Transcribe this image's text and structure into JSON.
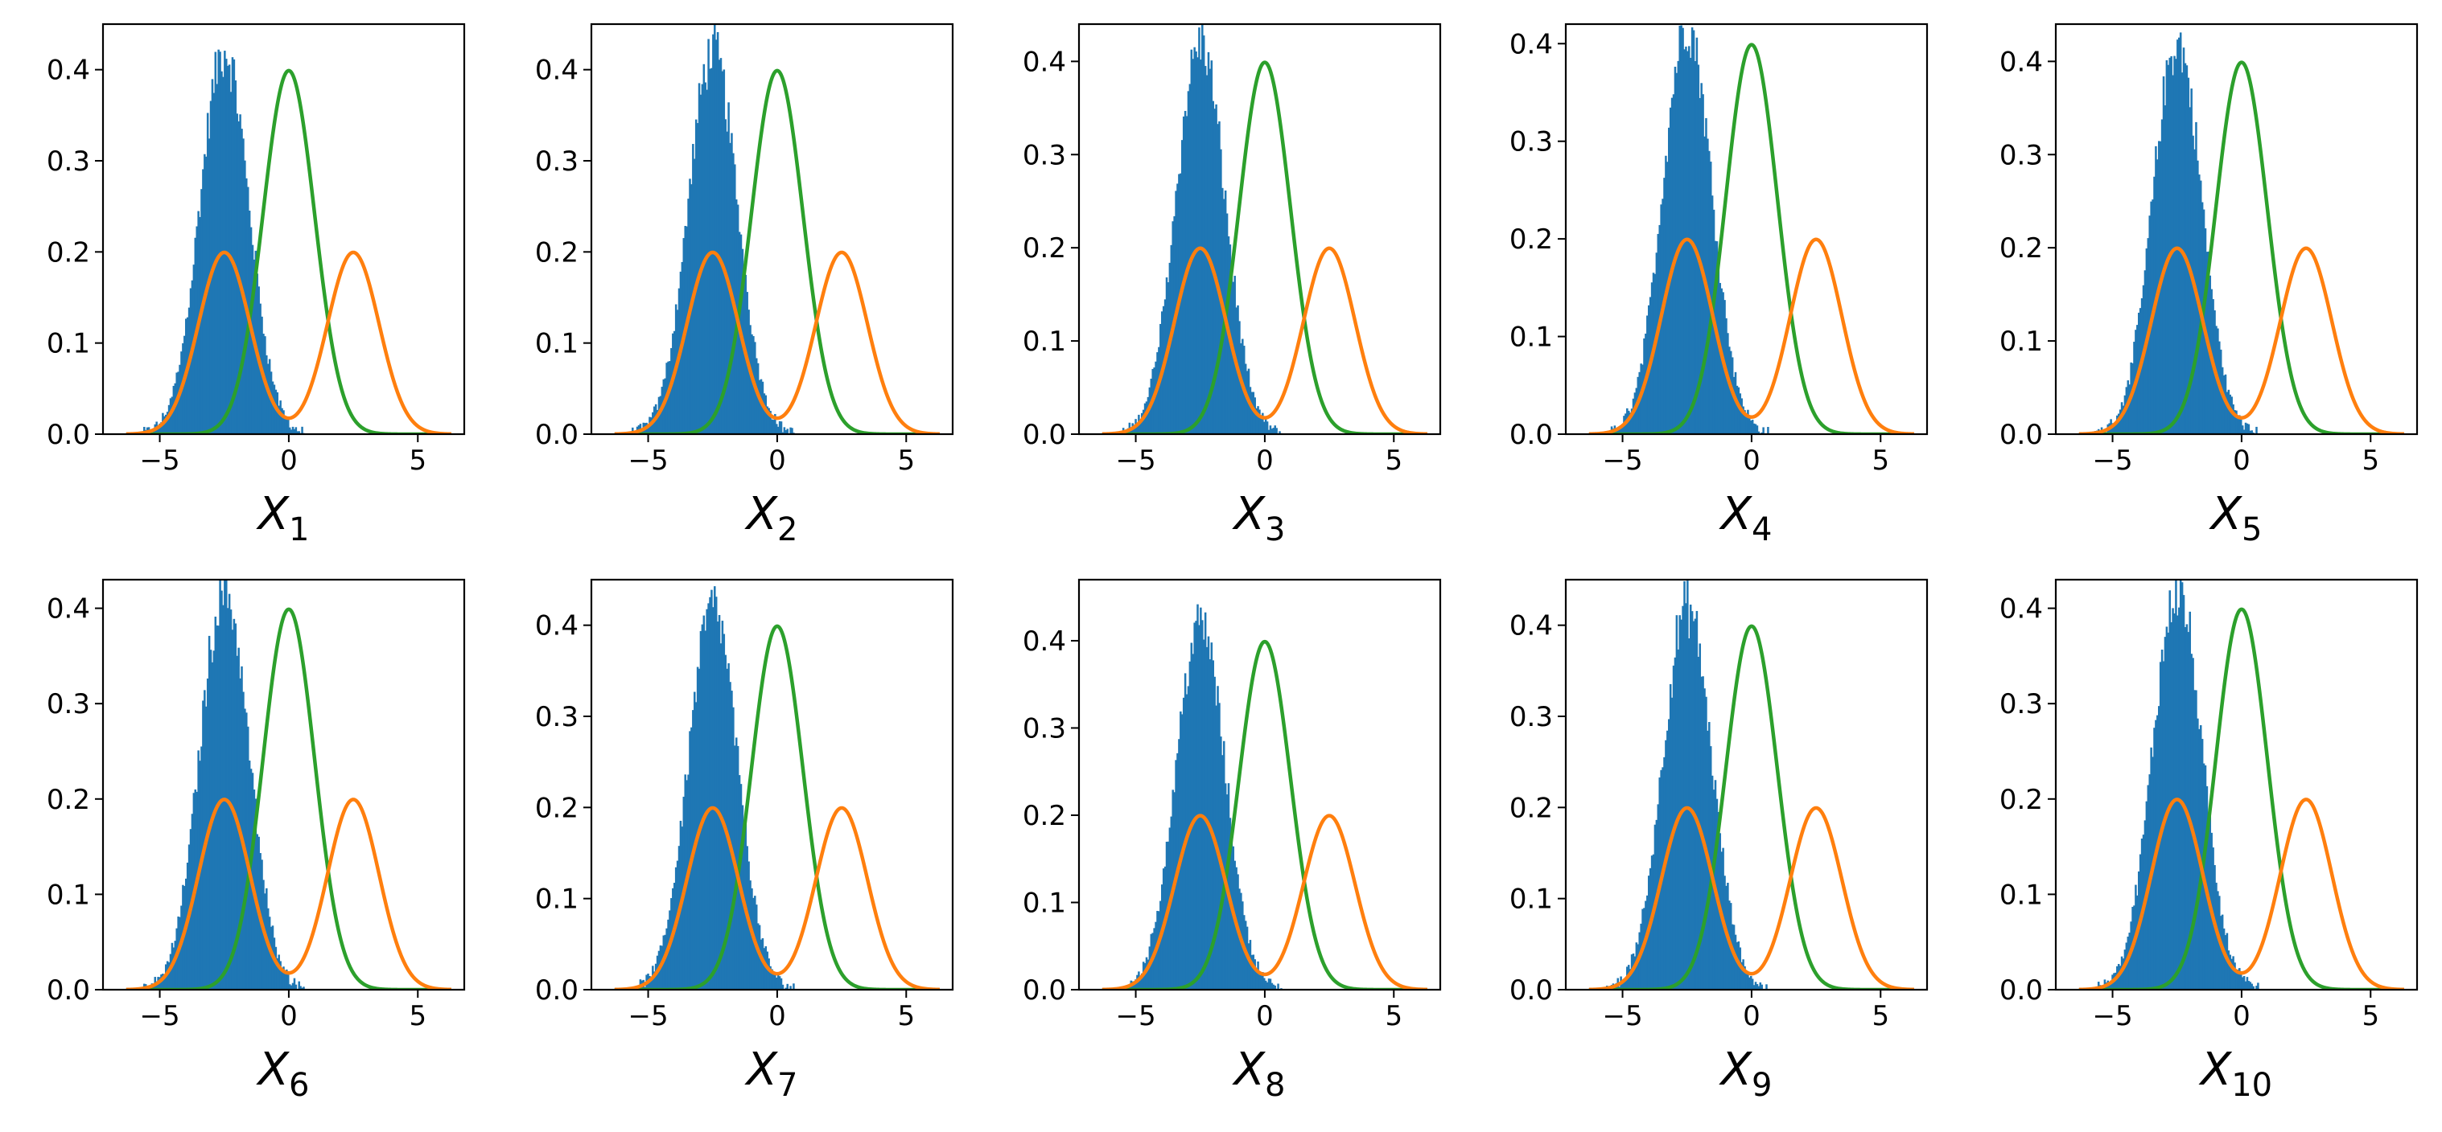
{
  "figure": {
    "description_free": true,
    "colors": {
      "histogram": "#1f77b4",
      "mixture_curve": "#ff7f0e",
      "normal_curve": "#2ca02c",
      "axes": "#000000"
    }
  },
  "chart_data": [
    {
      "type": "histogram+line",
      "xlabel_base": "X",
      "xlabel_sub": "1",
      "xlim": [
        -7.2,
        6.8
      ],
      "ylim": [
        0,
        0.45
      ],
      "xticks": [
        -5,
        0,
        5
      ],
      "xtick_labels": [
        "−5",
        "0",
        "5"
      ],
      "yticks": [
        0,
        0.1,
        0.2,
        0.3,
        0.4
      ],
      "ytick_labels": [
        "0.0",
        "0.1",
        "0.2",
        "0.3",
        "0.4"
      ],
      "series": [
        {
          "name": "histogram",
          "kind": "hist",
          "mean": -2.5,
          "std": 0.95,
          "range": [
            -6,
            2
          ]
        },
        {
          "name": "normal",
          "kind": "line",
          "formula": "N(0,1)",
          "color": "#2ca02c"
        },
        {
          "name": "mixture",
          "kind": "line",
          "formula": "0.5·N(-2.5,1)+0.5·N(2.5,1)",
          "color": "#ff7f0e"
        }
      ]
    },
    {
      "type": "histogram+line",
      "xlabel_base": "X",
      "xlabel_sub": "2",
      "xlim": [
        -7.2,
        6.8
      ],
      "ylim": [
        0,
        0.45
      ],
      "xticks": [
        -5,
        0,
        5
      ],
      "xtick_labels": [
        "−5",
        "0",
        "5"
      ],
      "yticks": [
        0,
        0.1,
        0.2,
        0.3,
        0.4
      ],
      "ytick_labels": [
        "0.0",
        "0.1",
        "0.2",
        "0.3",
        "0.4"
      ],
      "series": [
        {
          "name": "histogram",
          "kind": "hist",
          "mean": -2.5,
          "std": 0.95,
          "range": [
            -6,
            2
          ]
        },
        {
          "name": "normal",
          "kind": "line",
          "formula": "N(0,1)",
          "color": "#2ca02c"
        },
        {
          "name": "mixture",
          "kind": "line",
          "formula": "0.5·N(-2.5,1)+0.5·N(2.5,1)",
          "color": "#ff7f0e"
        }
      ]
    },
    {
      "type": "histogram+line",
      "xlabel_base": "X",
      "xlabel_sub": "3",
      "xlim": [
        -7.2,
        6.8
      ],
      "ylim": [
        0,
        0.44
      ],
      "xticks": [
        -5,
        0,
        5
      ],
      "xtick_labels": [
        "−5",
        "0",
        "5"
      ],
      "yticks": [
        0,
        0.1,
        0.2,
        0.3,
        0.4
      ],
      "ytick_labels": [
        "0.0",
        "0.1",
        "0.2",
        "0.3",
        "0.4"
      ],
      "series": [
        {
          "name": "histogram",
          "kind": "hist",
          "mean": -2.5,
          "std": 0.95,
          "range": [
            -6,
            2
          ]
        },
        {
          "name": "normal",
          "kind": "line",
          "formula": "N(0,1)",
          "color": "#2ca02c"
        },
        {
          "name": "mixture",
          "kind": "line",
          "formula": "0.5·N(-2.5,1)+0.5·N(2.5,1)",
          "color": "#ff7f0e"
        }
      ]
    },
    {
      "type": "histogram+line",
      "xlabel_base": "X",
      "xlabel_sub": "4",
      "xlim": [
        -7.2,
        6.8
      ],
      "ylim": [
        0,
        0.42
      ],
      "xticks": [
        -5,
        0,
        5
      ],
      "xtick_labels": [
        "−5",
        "0",
        "5"
      ],
      "yticks": [
        0,
        0.1,
        0.2,
        0.3,
        0.4
      ],
      "ytick_labels": [
        "0.0",
        "0.1",
        "0.2",
        "0.3",
        "0.4"
      ],
      "series": [
        {
          "name": "histogram",
          "kind": "hist",
          "mean": -2.5,
          "std": 0.95,
          "range": [
            -6,
            2
          ]
        },
        {
          "name": "normal",
          "kind": "line",
          "formula": "N(0,1)",
          "color": "#2ca02c"
        },
        {
          "name": "mixture",
          "kind": "line",
          "formula": "0.5·N(-2.5,1)+0.5·N(2.5,1)",
          "color": "#ff7f0e"
        }
      ]
    },
    {
      "type": "histogram+line",
      "xlabel_base": "X",
      "xlabel_sub": "5",
      "xlim": [
        -7.2,
        6.8
      ],
      "ylim": [
        0,
        0.44
      ],
      "xticks": [
        -5,
        0,
        5
      ],
      "xtick_labels": [
        "−5",
        "0",
        "5"
      ],
      "yticks": [
        0,
        0.1,
        0.2,
        0.3,
        0.4
      ],
      "ytick_labels": [
        "0.0",
        "0.1",
        "0.2",
        "0.3",
        "0.4"
      ],
      "series": [
        {
          "name": "histogram",
          "kind": "hist",
          "mean": -2.5,
          "std": 0.95,
          "range": [
            -6,
            2
          ]
        },
        {
          "name": "normal",
          "kind": "line",
          "formula": "N(0,1)",
          "color": "#2ca02c"
        },
        {
          "name": "mixture",
          "kind": "line",
          "formula": "0.5·N(-2.5,1)+0.5·N(2.5,1)",
          "color": "#ff7f0e"
        }
      ]
    },
    {
      "type": "histogram+line",
      "xlabel_base": "X",
      "xlabel_sub": "6",
      "xlim": [
        -7.2,
        6.8
      ],
      "ylim": [
        0,
        0.43
      ],
      "xticks": [
        -5,
        0,
        5
      ],
      "xtick_labels": [
        "−5",
        "0",
        "5"
      ],
      "yticks": [
        0,
        0.1,
        0.2,
        0.3,
        0.4
      ],
      "ytick_labels": [
        "0.0",
        "0.1",
        "0.2",
        "0.3",
        "0.4"
      ],
      "series": [
        {
          "name": "histogram",
          "kind": "hist",
          "mean": -2.5,
          "std": 0.95,
          "range": [
            -6,
            2
          ]
        },
        {
          "name": "normal",
          "kind": "line",
          "formula": "N(0,1)",
          "color": "#2ca02c"
        },
        {
          "name": "mixture",
          "kind": "line",
          "formula": "0.5·N(-2.5,1)+0.5·N(2.5,1)",
          "color": "#ff7f0e"
        }
      ]
    },
    {
      "type": "histogram+line",
      "xlabel_base": "X",
      "xlabel_sub": "7",
      "xlim": [
        -7.2,
        6.8
      ],
      "ylim": [
        0,
        0.45
      ],
      "xticks": [
        -5,
        0,
        5
      ],
      "xtick_labels": [
        "−5",
        "0",
        "5"
      ],
      "yticks": [
        0,
        0.1,
        0.2,
        0.3,
        0.4
      ],
      "ytick_labels": [
        "0.0",
        "0.1",
        "0.2",
        "0.3",
        "0.4"
      ],
      "series": [
        {
          "name": "histogram",
          "kind": "hist",
          "mean": -2.5,
          "std": 0.95,
          "range": [
            -6,
            2
          ]
        },
        {
          "name": "normal",
          "kind": "line",
          "formula": "N(0,1)",
          "color": "#2ca02c"
        },
        {
          "name": "mixture",
          "kind": "line",
          "formula": "0.5·N(-2.5,1)+0.5·N(2.5,1)",
          "color": "#ff7f0e"
        }
      ]
    },
    {
      "type": "histogram+line",
      "xlabel_base": "X",
      "xlabel_sub": "8",
      "xlim": [
        -7.2,
        6.8
      ],
      "ylim": [
        0,
        0.47
      ],
      "xticks": [
        -5,
        0,
        5
      ],
      "xtick_labels": [
        "−5",
        "0",
        "5"
      ],
      "yticks": [
        0,
        0.1,
        0.2,
        0.3,
        0.4
      ],
      "ytick_labels": [
        "0.0",
        "0.1",
        "0.2",
        "0.3",
        "0.4"
      ],
      "series": [
        {
          "name": "histogram",
          "kind": "hist",
          "mean": -2.5,
          "std": 0.95,
          "range": [
            -6,
            2
          ]
        },
        {
          "name": "normal",
          "kind": "line",
          "formula": "N(0,1)",
          "color": "#2ca02c"
        },
        {
          "name": "mixture",
          "kind": "line",
          "formula": "0.5·N(-2.5,1)+0.5·N(2.5,1)",
          "color": "#ff7f0e"
        }
      ]
    },
    {
      "type": "histogram+line",
      "xlabel_base": "X",
      "xlabel_sub": "9",
      "xlim": [
        -7.2,
        6.8
      ],
      "ylim": [
        0,
        0.45
      ],
      "xticks": [
        -5,
        0,
        5
      ],
      "xtick_labels": [
        "−5",
        "0",
        "5"
      ],
      "yticks": [
        0,
        0.1,
        0.2,
        0.3,
        0.4
      ],
      "ytick_labels": [
        "0.0",
        "0.1",
        "0.2",
        "0.3",
        "0.4"
      ],
      "series": [
        {
          "name": "histogram",
          "kind": "hist",
          "mean": -2.5,
          "std": 0.95,
          "range": [
            -6,
            2
          ]
        },
        {
          "name": "normal",
          "kind": "line",
          "formula": "N(0,1)",
          "color": "#2ca02c"
        },
        {
          "name": "mixture",
          "kind": "line",
          "formula": "0.5·N(-2.5,1)+0.5·N(2.5,1)",
          "color": "#ff7f0e"
        }
      ]
    },
    {
      "type": "histogram+line",
      "xlabel_base": "X",
      "xlabel_sub": "10",
      "xlim": [
        -7.2,
        6.8
      ],
      "ylim": [
        0,
        0.43
      ],
      "xticks": [
        -5,
        0,
        5
      ],
      "xtick_labels": [
        "−5",
        "0",
        "5"
      ],
      "yticks": [
        0,
        0.1,
        0.2,
        0.3,
        0.4
      ],
      "ytick_labels": [
        "0.0",
        "0.1",
        "0.2",
        "0.3",
        "0.4"
      ],
      "series": [
        {
          "name": "histogram",
          "kind": "hist",
          "mean": -2.5,
          "std": 0.95,
          "range": [
            -6,
            2
          ]
        },
        {
          "name": "normal",
          "kind": "line",
          "formula": "N(0,1)",
          "color": "#2ca02c"
        },
        {
          "name": "mixture",
          "kind": "line",
          "formula": "0.5·N(-2.5,1)+0.5·N(2.5,1)",
          "color": "#ff7f0e"
        }
      ]
    }
  ]
}
